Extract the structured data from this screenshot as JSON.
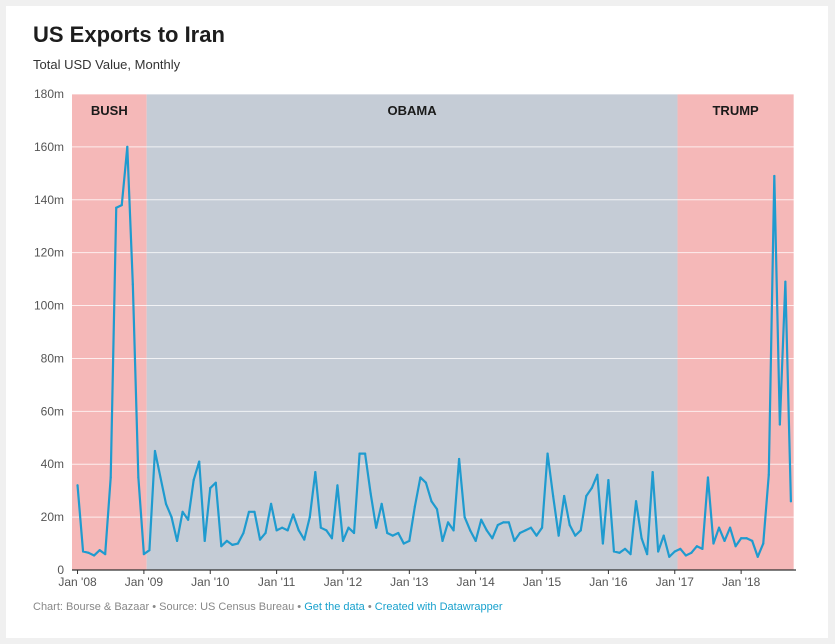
{
  "header": {
    "title": "US Exports to Iran",
    "subtitle": "Total USD Value, Monthly"
  },
  "footer": {
    "credit": "Chart: Bourse & Bazaar • Source: US Census Bureau •",
    "get_data": "Get the data",
    "separator": "•",
    "created_with": "Created with Datawrapper"
  },
  "colors": {
    "line": "#1f9bcf",
    "bush_band": "#f5b8b8",
    "obama_band": "#c5ccd6",
    "trump_band": "#f5b8b8",
    "grid": "#e4e4e4",
    "baseline": "#333333"
  },
  "chart_data": {
    "type": "line",
    "title": "US Exports to Iran",
    "subtitle": "Total USD Value, Monthly",
    "y_unit": "m",
    "ylim": [
      0,
      180
    ],
    "xlim": [
      0,
      129.5
    ],
    "y_ticks": [
      {
        "value": 0,
        "label": "0"
      },
      {
        "value": 20,
        "label": "20m"
      },
      {
        "value": 40,
        "label": "40m"
      },
      {
        "value": 60,
        "label": "60m"
      },
      {
        "value": 80,
        "label": "80m"
      },
      {
        "value": 100,
        "label": "100m"
      },
      {
        "value": 120,
        "label": "120m"
      },
      {
        "value": 140,
        "label": "140m"
      },
      {
        "value": 160,
        "label": "160m"
      },
      {
        "value": 180,
        "label": "180m"
      }
    ],
    "x_ticks": [
      {
        "month_index": 0,
        "label": "Jan '08"
      },
      {
        "month_index": 12,
        "label": "Jan '09"
      },
      {
        "month_index": 24,
        "label": "Jan '10"
      },
      {
        "month_index": 36,
        "label": "Jan '11"
      },
      {
        "month_index": 48,
        "label": "Jan '12"
      },
      {
        "month_index": 60,
        "label": "Jan '13"
      },
      {
        "month_index": 72,
        "label": "Jan '14"
      },
      {
        "month_index": 84,
        "label": "Jan '15"
      },
      {
        "month_index": 96,
        "label": "Jan '16"
      },
      {
        "month_index": 108,
        "label": "Jan '17"
      },
      {
        "month_index": 120,
        "label": "Jan '18"
      }
    ],
    "regions": [
      {
        "label": "BUSH",
        "start": -1,
        "end": 12.5
      },
      {
        "label": "OBAMA",
        "start": 12.5,
        "end": 108.5
      },
      {
        "label": "TRUMP",
        "start": 108.5,
        "end": 129.5
      }
    ],
    "grid": true,
    "series": [
      {
        "values": [
          32,
          7,
          6.5,
          5.5,
          7.5,
          6,
          35,
          137,
          138,
          160,
          108,
          35,
          6,
          7.5,
          45,
          35,
          25,
          20,
          11,
          22,
          19,
          34,
          41,
          11,
          31,
          33,
          9,
          11,
          9.5,
          10,
          14,
          22,
          22,
          11.5,
          14,
          25,
          15,
          16,
          15,
          21,
          15,
          11.5,
          20,
          37,
          16,
          15,
          12,
          32,
          11,
          16,
          14,
          44,
          44,
          29,
          16,
          25,
          14,
          13,
          14,
          10,
          11,
          24,
          35,
          33,
          26,
          23,
          11,
          18,
          15,
          42,
          20,
          15,
          11,
          19,
          15,
          12,
          17,
          18,
          18,
          11,
          14,
          15,
          16,
          13,
          16,
          44,
          28,
          13,
          28,
          17,
          13,
          15,
          28,
          31,
          36,
          10,
          34,
          7,
          6.5,
          8,
          6,
          26,
          12,
          6,
          37,
          7,
          13,
          5,
          7,
          8,
          5.5,
          6.5,
          9,
          8,
          35,
          10,
          16,
          11,
          16,
          9,
          12,
          12,
          11,
          5,
          10,
          36,
          149,
          55,
          109,
          26
        ]
      }
    ]
  }
}
